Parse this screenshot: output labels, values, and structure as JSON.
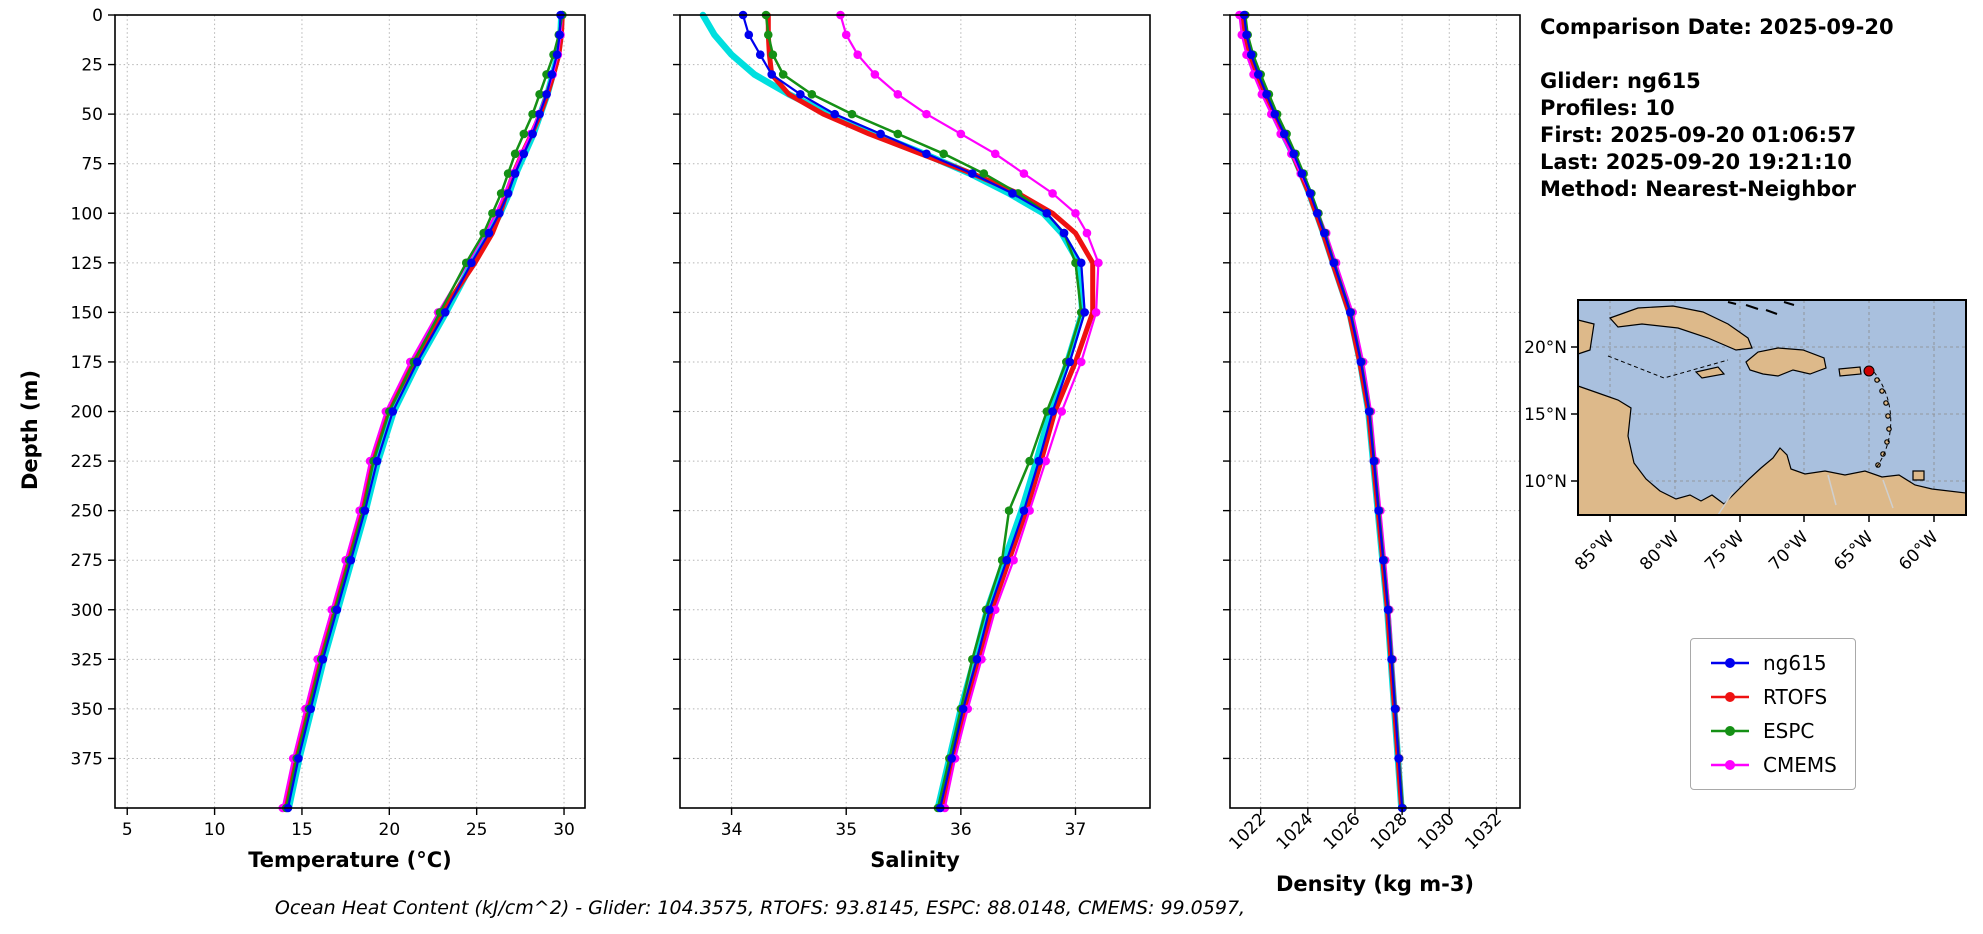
{
  "info": {
    "comparison_date": "Comparison Date: 2025-09-20",
    "glider": "Glider: ng615",
    "profiles": "Profiles: 10",
    "first": "First: 2025-09-20 01:06:57",
    "last": "Last: 2025-09-20 19:21:10",
    "method": "Method: Nearest-Neighbor"
  },
  "footer": {
    "text": "Ocean Heat Content (kJ/cm^2) - Glider: 104.3575,  RTOFS: 93.8145,  ESPC: 88.0148,  CMEMS: 99.0597,"
  },
  "legend": {
    "items": [
      {
        "label": "ng615",
        "color": "#0000ee"
      },
      {
        "label": "RTOFS",
        "color": "#ee1111"
      },
      {
        "label": "ESPC",
        "color": "#159015"
      },
      {
        "label": "CMEMS",
        "color": "#ff00ff"
      }
    ]
  },
  "map": {
    "ocean_color": "#a9c0de",
    "land_color": "#ddb98a",
    "marker_color": "#cc0000",
    "lat_labels": [
      "20°N",
      "15°N",
      "10°N"
    ],
    "lon_labels": [
      "85°W",
      "80°W",
      "75°W",
      "70°W",
      "65°W",
      "60°W"
    ]
  },
  "chart_data": [
    {
      "type": "line",
      "xlabel": "Temperature (°C)",
      "ylabel": "Depth (m)",
      "xlim": [
        4.3,
        31.2
      ],
      "ylim": [
        0,
        400
      ],
      "xticks": [
        5,
        10,
        15,
        20,
        25,
        30
      ],
      "yticks": [
        0,
        25,
        50,
        75,
        100,
        125,
        150,
        175,
        200,
        225,
        250,
        275,
        300,
        325,
        350,
        375
      ],
      "grid": true,
      "depths": [
        0,
        10,
        20,
        30,
        40,
        50,
        60,
        70,
        80,
        90,
        100,
        110,
        125,
        150,
        175,
        200,
        225,
        250,
        275,
        300,
        325,
        350,
        375,
        400
      ],
      "series": [
        {
          "name": "glider-raw",
          "color": "#00dfdf",
          "width": 6.5,
          "marker": false,
          "values": [
            29.85,
            29.8,
            29.65,
            29.35,
            29.05,
            28.65,
            28.25,
            27.75,
            27.25,
            26.85,
            26.35,
            25.75,
            24.75,
            23.25,
            21.65,
            20.25,
            19.35,
            18.65,
            17.85,
            17.05,
            16.25,
            15.55,
            14.85,
            14.25
          ]
        },
        {
          "name": "RTOFS",
          "color": "#ee1111",
          "width": 5,
          "marker": false,
          "values": [
            29.9,
            29.85,
            29.7,
            29.4,
            29.05,
            28.65,
            28.15,
            27.6,
            27.1,
            26.7,
            26.35,
            25.9,
            24.9,
            23.0,
            21.4,
            19.9,
            19.0,
            18.4,
            17.6,
            16.8,
            16.0,
            15.3,
            14.6,
            14.0
          ]
        },
        {
          "name": "CMEMS",
          "color": "#ff00ff",
          "width": 2.2,
          "marker": true,
          "values": [
            29.9,
            29.8,
            29.65,
            29.35,
            29.0,
            28.55,
            28.1,
            27.55,
            27.05,
            26.6,
            26.1,
            25.5,
            24.5,
            22.8,
            21.2,
            19.8,
            18.9,
            18.3,
            17.5,
            16.7,
            15.9,
            15.2,
            14.5,
            13.9
          ]
        },
        {
          "name": "ESPC",
          "color": "#159015",
          "width": 2.5,
          "marker": true,
          "values": [
            29.9,
            29.7,
            29.4,
            29.0,
            28.6,
            28.2,
            27.7,
            27.2,
            26.8,
            26.4,
            25.9,
            25.4,
            24.4,
            22.9,
            21.4,
            20.0,
            19.1,
            18.5,
            17.7,
            16.9,
            16.1,
            15.4,
            14.7,
            14.1
          ]
        },
        {
          "name": "ng615",
          "color": "#0000ee",
          "width": 2.2,
          "marker": true,
          "values": [
            29.8,
            29.75,
            29.6,
            29.3,
            29.0,
            28.6,
            28.2,
            27.7,
            27.2,
            26.8,
            26.3,
            25.7,
            24.7,
            23.2,
            21.6,
            20.2,
            19.3,
            18.6,
            17.8,
            17.0,
            16.2,
            15.5,
            14.8,
            14.2
          ]
        }
      ]
    },
    {
      "type": "line",
      "xlabel": "Salinity",
      "ylabel": "Depth (m)",
      "xlim": [
        33.55,
        37.65
      ],
      "ylim": [
        0,
        400
      ],
      "xticks": [
        34,
        35,
        36,
        37
      ],
      "yticks": [
        0,
        25,
        50,
        75,
        100,
        125,
        150,
        175,
        200,
        225,
        250,
        275,
        300,
        325,
        350,
        375
      ],
      "grid": true,
      "depths": [
        0,
        10,
        20,
        30,
        40,
        50,
        60,
        70,
        80,
        90,
        100,
        110,
        125,
        150,
        175,
        200,
        225,
        250,
        275,
        300,
        325,
        350,
        375,
        400
      ],
      "series": [
        {
          "name": "glider-raw",
          "color": "#00dfdf",
          "width": 6.5,
          "marker": false,
          "values": [
            33.75,
            33.85,
            34.0,
            34.2,
            34.5,
            34.85,
            35.25,
            35.68,
            36.08,
            36.42,
            36.72,
            36.88,
            37.03,
            37.06,
            36.93,
            36.78,
            36.66,
            36.53,
            36.38,
            36.23,
            36.12,
            36.0,
            35.9,
            35.8
          ]
        },
        {
          "name": "RTOFS",
          "color": "#ee1111",
          "width": 5,
          "marker": false,
          "values": [
            34.32,
            34.32,
            34.33,
            34.35,
            34.5,
            34.8,
            35.2,
            35.65,
            36.1,
            36.5,
            36.8,
            37.0,
            37.15,
            37.15,
            37.0,
            36.82,
            36.7,
            36.57,
            36.42,
            36.27,
            36.15,
            36.03,
            35.93,
            35.84
          ]
        },
        {
          "name": "CMEMS",
          "color": "#ff00ff",
          "width": 2.2,
          "marker": true,
          "values": [
            34.95,
            35.0,
            35.1,
            35.25,
            35.45,
            35.7,
            36.0,
            36.3,
            36.55,
            36.8,
            37.0,
            37.1,
            37.2,
            37.18,
            37.05,
            36.88,
            36.74,
            36.6,
            36.46,
            36.3,
            36.18,
            36.06,
            35.95,
            35.86
          ]
        },
        {
          "name": "ESPC",
          "color": "#159015",
          "width": 2.5,
          "marker": true,
          "values": [
            34.3,
            34.32,
            34.36,
            34.45,
            34.7,
            35.05,
            35.45,
            35.85,
            36.2,
            36.5,
            36.75,
            36.9,
            37.0,
            37.05,
            36.92,
            36.75,
            36.6,
            36.42,
            36.36,
            36.22,
            36.1,
            36.0,
            35.9,
            35.8
          ]
        },
        {
          "name": "ng615",
          "color": "#0000ee",
          "width": 2.2,
          "marker": true,
          "values": [
            34.1,
            34.15,
            34.25,
            34.35,
            34.6,
            34.9,
            35.3,
            35.7,
            36.1,
            36.45,
            36.75,
            36.9,
            37.05,
            37.08,
            36.95,
            36.8,
            36.68,
            36.55,
            36.4,
            36.25,
            36.14,
            36.02,
            35.92,
            35.82
          ]
        }
      ]
    },
    {
      "type": "line",
      "xlabel": "Density (kg m-3)",
      "ylabel": "Depth (m)",
      "xlim": [
        1020.7,
        1033
      ],
      "ylim": [
        0,
        400
      ],
      "xticks": [
        1022,
        1024,
        1026,
        1028,
        1030,
        1032
      ],
      "yticks": [
        0,
        25,
        50,
        75,
        100,
        125,
        150,
        175,
        200,
        225,
        250,
        275,
        300,
        325,
        350,
        375
      ],
      "grid": true,
      "depths": [
        0,
        10,
        20,
        30,
        40,
        50,
        60,
        70,
        80,
        90,
        100,
        110,
        125,
        150,
        175,
        200,
        225,
        250,
        275,
        300,
        325,
        350,
        375,
        400
      ],
      "series": [
        {
          "name": "glider-raw",
          "color": "#00dfdf",
          "width": 6.5,
          "marker": false,
          "values": [
            1021.2,
            1021.32,
            1021.52,
            1021.84,
            1022.18,
            1022.55,
            1022.95,
            1023.36,
            1023.72,
            1024.06,
            1024.37,
            1024.66,
            1025.07,
            1025.77,
            1026.22,
            1026.57,
            1026.77,
            1026.97,
            1027.17,
            1027.37,
            1027.52,
            1027.67,
            1027.82,
            1027.97
          ]
        },
        {
          "name": "RTOFS",
          "color": "#ee1111",
          "width": 5,
          "marker": false,
          "values": [
            1021.25,
            1021.35,
            1021.55,
            1021.85,
            1022.2,
            1022.55,
            1022.95,
            1023.35,
            1023.7,
            1024.05,
            1024.35,
            1024.65,
            1025.05,
            1025.75,
            1026.2,
            1026.58,
            1026.78,
            1026.98,
            1027.18,
            1027.38,
            1027.53,
            1027.68,
            1027.83,
            1027.98
          ]
        },
        {
          "name": "CMEMS",
          "color": "#ff00ff",
          "width": 2.2,
          "marker": true,
          "values": [
            1021.1,
            1021.2,
            1021.4,
            1021.7,
            1022.05,
            1022.45,
            1022.85,
            1023.3,
            1023.7,
            1024.1,
            1024.45,
            1024.78,
            1025.2,
            1025.9,
            1026.35,
            1026.68,
            1026.88,
            1027.08,
            1027.28,
            1027.46,
            1027.6,
            1027.74,
            1027.88,
            1028.02
          ]
        },
        {
          "name": "ESPC",
          "color": "#159015",
          "width": 2.5,
          "marker": true,
          "values": [
            1021.35,
            1021.45,
            1021.68,
            1022.0,
            1022.35,
            1022.7,
            1023.1,
            1023.48,
            1023.82,
            1024.15,
            1024.45,
            1024.73,
            1025.12,
            1025.82,
            1026.27,
            1026.62,
            1026.82,
            1027.02,
            1027.22,
            1027.42,
            1027.57,
            1027.72,
            1027.87,
            1028.02
          ]
        },
        {
          "name": "ng615",
          "color": "#0000ee",
          "width": 2.2,
          "marker": true,
          "values": [
            1021.3,
            1021.4,
            1021.6,
            1021.9,
            1022.25,
            1022.6,
            1023.0,
            1023.4,
            1023.75,
            1024.1,
            1024.4,
            1024.7,
            1025.1,
            1025.8,
            1026.25,
            1026.6,
            1026.8,
            1027.0,
            1027.2,
            1027.4,
            1027.55,
            1027.7,
            1027.85,
            1028.0
          ]
        }
      ]
    }
  ]
}
